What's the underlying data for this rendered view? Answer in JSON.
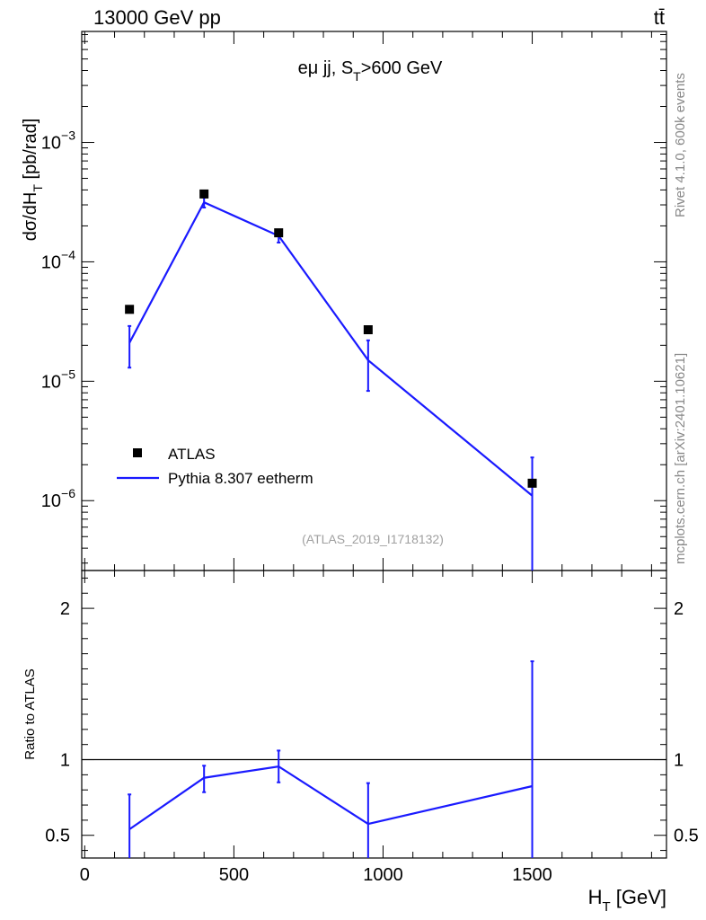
{
  "header": {
    "energy_label": "13000 GeV pp",
    "process_label": "tt̄"
  },
  "side_text": {
    "rivet_label": "Rivet 4.1.0,  600k events",
    "mcplots_label": "mcplots.cern.ch [arXiv:2401.10621]"
  },
  "colors": {
    "mc_line": "#1a1aff",
    "data_marker": "#000000",
    "ref_line": "#000000",
    "watermark": "#a0a0a0"
  },
  "chart_data": [
    {
      "type": "line",
      "panel": "main",
      "title": "eμ jj, S_T>600 GeV",
      "ylabel": "dσ/dH_T [pb/rad]",
      "yscale": "log",
      "ylim": [
        2.6e-07,
        0.0085
      ],
      "xlim": [
        -10,
        1950
      ],
      "y_ticks": [
        {
          "value": 0.001,
          "mantissa": "10",
          "exponent": "−3"
        },
        {
          "value": 0.0001,
          "mantissa": "10",
          "exponent": "−4"
        },
        {
          "value": 1e-05,
          "mantissa": "10",
          "exponent": "−5"
        },
        {
          "value": 1e-06,
          "mantissa": "10",
          "exponent": "−6"
        }
      ],
      "analysis_label": "(ATLAS_2019_I1718132)",
      "legend": {
        "position": "lower-left",
        "entries": [
          "ATLAS",
          "Pythia 8.307 eetherm"
        ]
      },
      "series": [
        {
          "name": "ATLAS",
          "style": "markers",
          "x": [
            150,
            400,
            650,
            950,
            1500
          ],
          "y": [
            4e-05,
            0.00037,
            0.000175,
            2.7e-05,
            1.4e-06
          ]
        },
        {
          "name": "Pythia 8.307 eetherm",
          "style": "line",
          "x": [
            150,
            400,
            650,
            950,
            1500
          ],
          "y": [
            2.1e-05,
            0.000315,
            0.000165,
            1.5e-05,
            1.1e-06
          ],
          "y_err_low": [
            1.3e-05,
            0.000285,
            0.000145,
            8.3e-06,
            0.0
          ],
          "y_err_high": [
            2.9e-05,
            0.000345,
            0.000185,
            2.2e-05,
            2.3e-06
          ]
        }
      ]
    },
    {
      "type": "line",
      "panel": "ratio",
      "ylabel": "Ratio to ATLAS",
      "xlabel": "H_T [GeV]",
      "ylim": [
        0.35,
        2.25
      ],
      "xlim": [
        -10,
        1950
      ],
      "x_ticks": [
        "0",
        "500",
        "1000",
        "1500"
      ],
      "y_ticks": [
        "0.5",
        "1",
        "2"
      ],
      "reference": 1,
      "series": [
        {
          "name": "Pythia 8.307 eetherm / ATLAS",
          "x": [
            150,
            400,
            650,
            950,
            1500
          ],
          "y": [
            0.54,
            0.88,
            0.955,
            0.575,
            0.825
          ],
          "y_err_low": [
            0.3,
            0.785,
            0.85,
            0.3,
            0.3
          ],
          "y_err_high": [
            0.77,
            0.96,
            1.06,
            0.845,
            1.65
          ]
        }
      ]
    }
  ]
}
